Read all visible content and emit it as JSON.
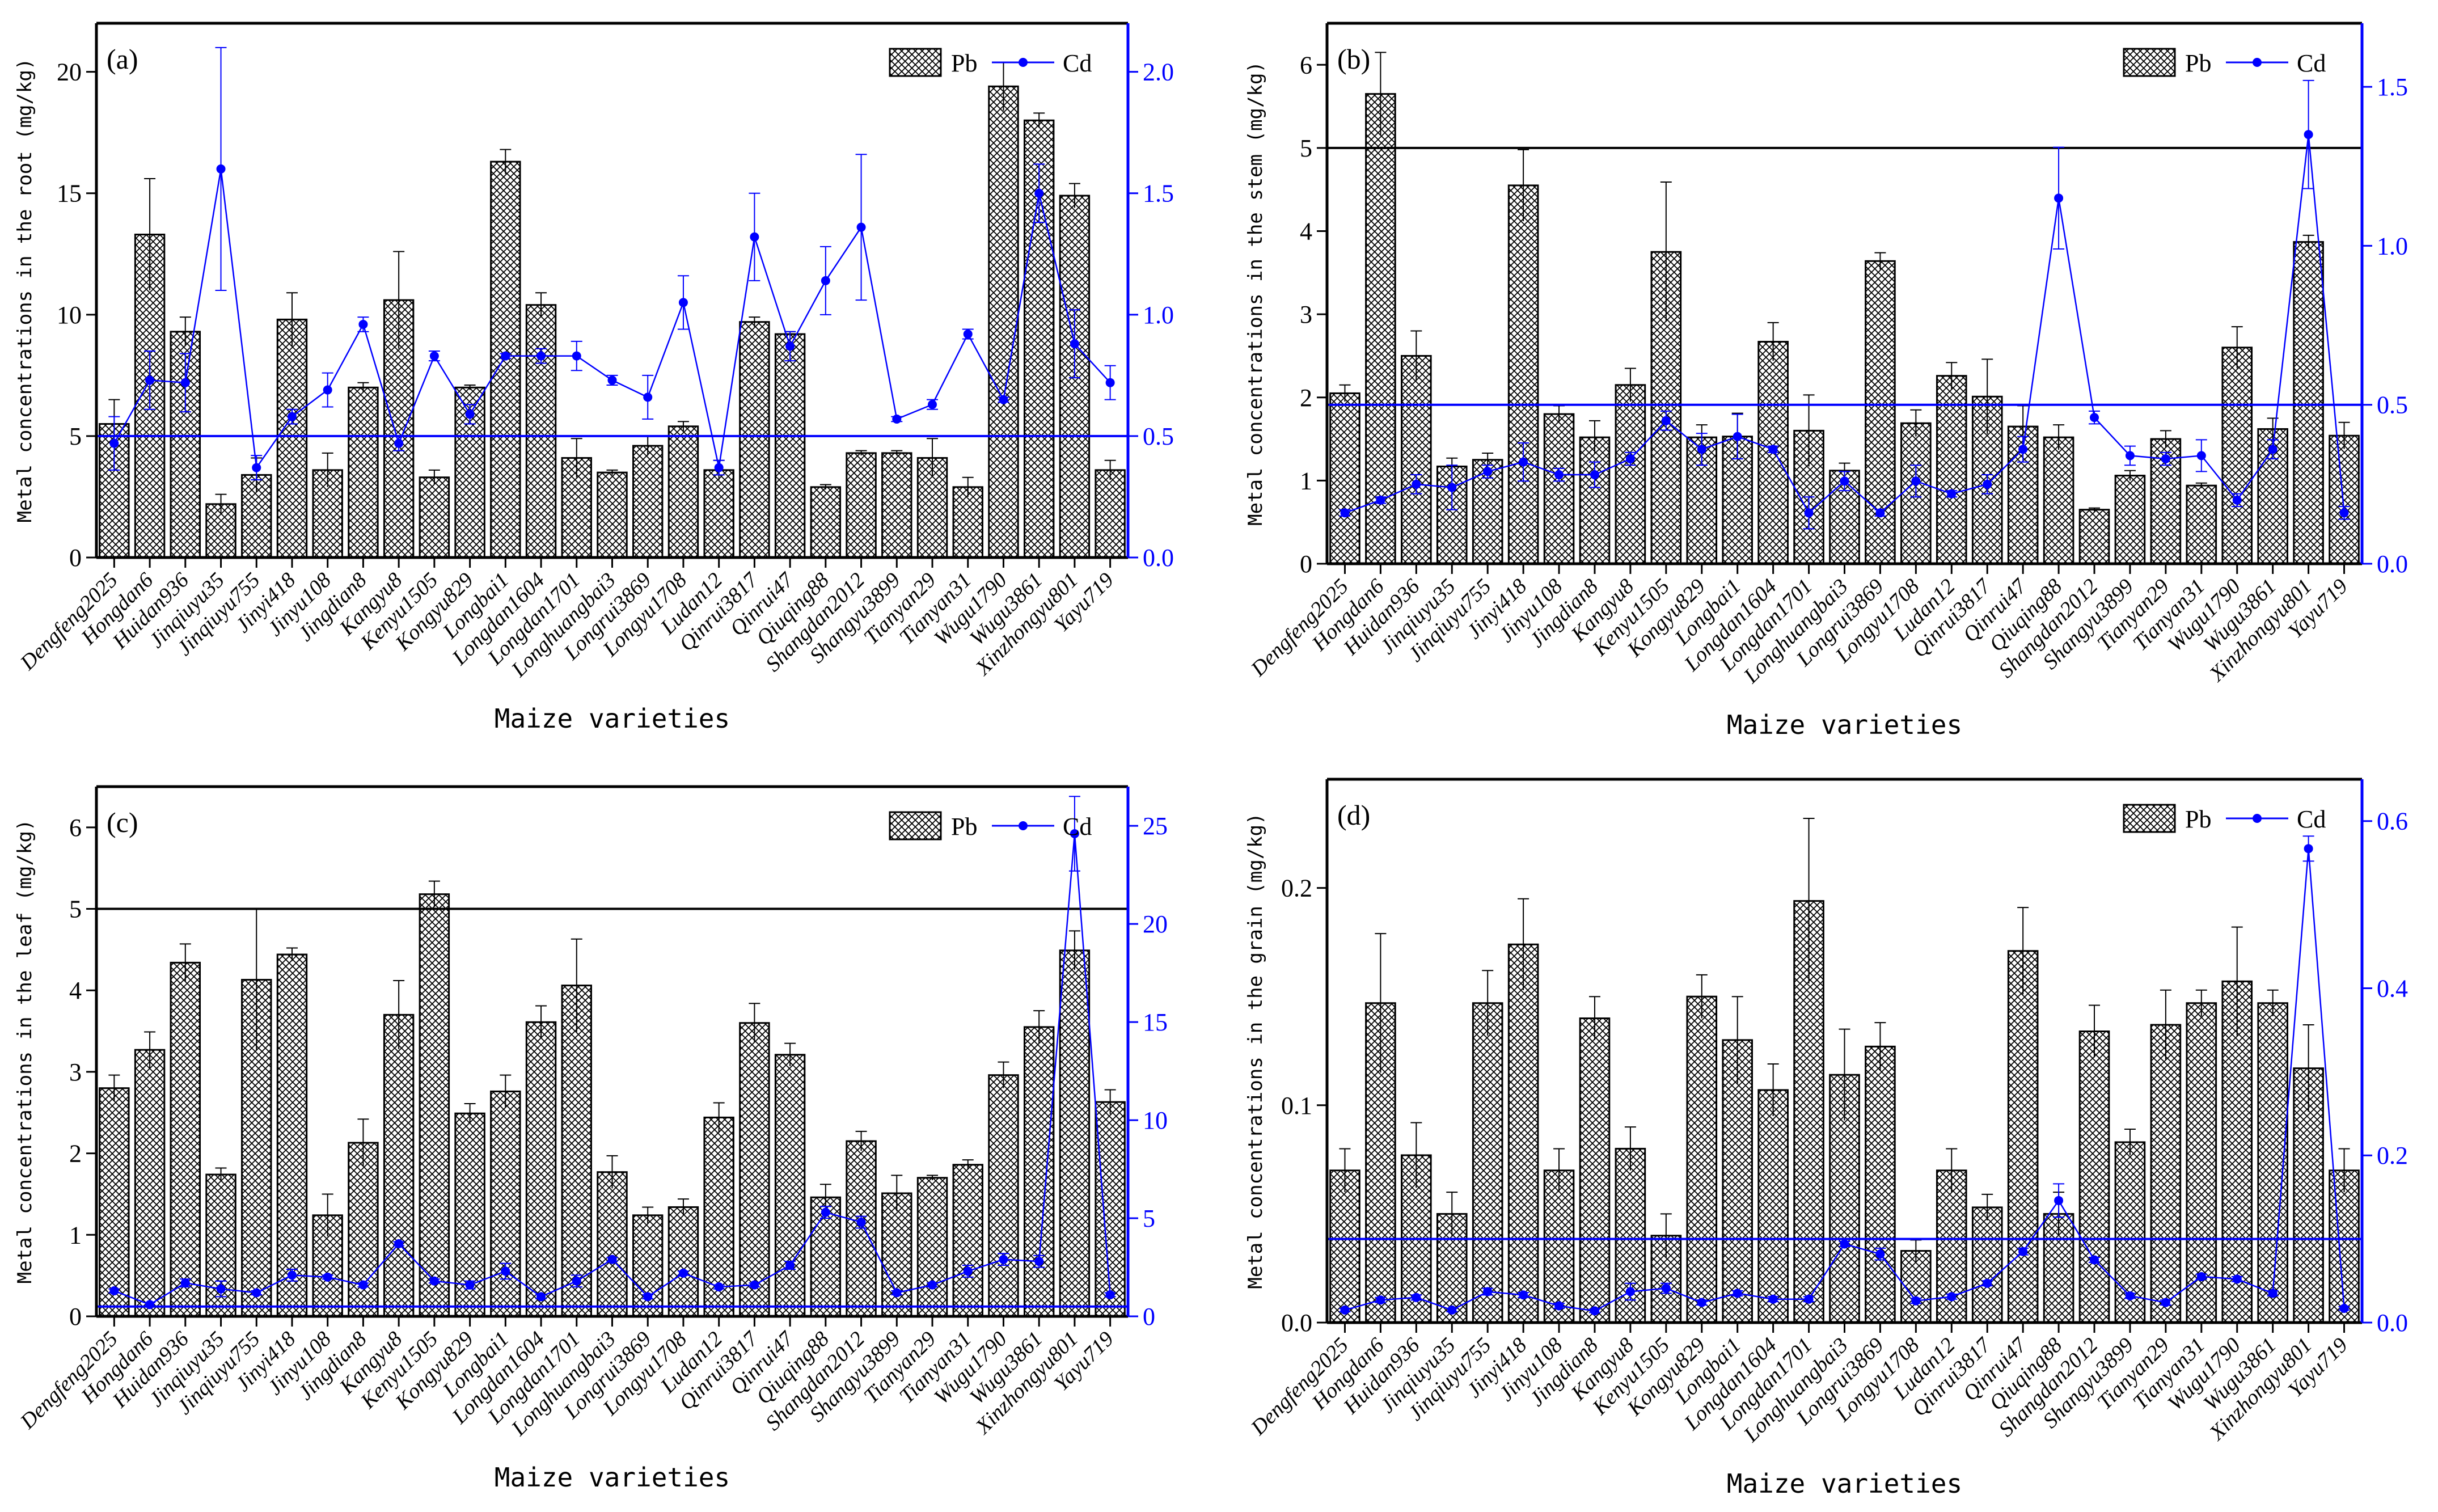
{
  "chart_data": [
    {
      "type": "bar+line",
      "panel_label": "(a)",
      "xlabel": "Maize varieties",
      "ylabel": "Metal concentrations in the root (mg/kg)",
      "categories": [
        "Dengfeng2025",
        "Hongdan6",
        "Huidan936",
        "Jinqiuyu35",
        "Jinqiuyu755",
        "Jinyi418",
        "Jinyu108",
        "Jingdian8",
        "Kangyu8",
        "Kenyu1505",
        "Kongyu829",
        "Longbai1",
        "Longdan1604",
        "Longdan1701",
        "Longhuangbai3",
        "Longrui3869",
        "Longyu1708",
        "Ludan12",
        "Qinrui3817",
        "Qinrui47",
        "Qiuqing88",
        "Shangdan2012",
        "Shangyu3899",
        "Tianyan29",
        "Tianyan31",
        "Wugu1790",
        "Wugu3861",
        "Xinzhongyu801",
        "Yayu719"
      ],
      "ylim_left": [
        0,
        22
      ],
      "ylim_right": [
        0,
        2.2
      ],
      "left_ticks": [
        "0",
        "5",
        "10",
        "15",
        "20"
      ],
      "right_ticks": [
        "0.0",
        "0.5",
        "1.0",
        "1.5",
        "2.0"
      ],
      "legend_position": "top-right",
      "series": [
        {
          "name": "Pb",
          "axis": "left",
          "kind": "bar",
          "values": [
            5.5,
            13.3,
            9.3,
            2.2,
            3.4,
            9.8,
            3.6,
            7.0,
            10.6,
            3.3,
            7.0,
            16.3,
            10.4,
            4.1,
            3.5,
            4.6,
            5.4,
            3.6,
            9.7,
            9.2,
            2.9,
            4.3,
            4.3,
            4.1,
            2.9,
            19.4,
            18.0,
            14.9,
            3.6
          ],
          "errors": [
            1.0,
            2.3,
            0.6,
            0.4,
            0.7,
            1.1,
            0.7,
            0.2,
            2.0,
            0.3,
            0.1,
            0.5,
            0.5,
            0.8,
            0.1,
            0.4,
            0.2,
            0.4,
            0.2,
            0.1,
            0.1,
            0.1,
            0.1,
            0.8,
            0.4,
            1.0,
            0.3,
            0.5,
            0.4
          ]
        },
        {
          "name": "Cd",
          "axis": "right",
          "kind": "line",
          "values": [
            0.47,
            0.73,
            0.72,
            1.6,
            0.37,
            0.58,
            0.69,
            0.96,
            0.47,
            0.83,
            0.59,
            0.83,
            0.83,
            0.83,
            0.73,
            0.66,
            1.05,
            0.37,
            1.32,
            0.87,
            1.14,
            1.36,
            0.57,
            0.63,
            0.92,
            0.65,
            1.5,
            0.88,
            0.72
          ],
          "errors": [
            0.11,
            0.12,
            0.12,
            0.5,
            0.05,
            0.03,
            0.07,
            0.03,
            0.03,
            0.02,
            0.04,
            0.01,
            0.03,
            0.06,
            0.02,
            0.09,
            0.11,
            0.03,
            0.18,
            0.06,
            0.14,
            0.3,
            0.01,
            0.02,
            0.02,
            0.01,
            0.12,
            0.14,
            0.07
          ]
        }
      ],
      "reference_lines": [
        {
          "axis": "right",
          "value": 0.5,
          "color": "#0000ff"
        }
      ]
    },
    {
      "type": "bar+line",
      "panel_label": "(b)",
      "xlabel": "Maize varieties",
      "ylabel": "Metal concentrations in the stem (mg/kg)",
      "categories": [
        "Dengfeng2025",
        "Hongdan6",
        "Huidan936",
        "Jinqiuyu35",
        "Jinqiuyu755",
        "Jinyi418",
        "Jinyu108",
        "Jingdian8",
        "Kangyu8",
        "Kenyu1505",
        "Kongyu829",
        "Longbai1",
        "Longdan1604",
        "Longdan1701",
        "Longhuangbai3",
        "Longrui3869",
        "Longyu1708",
        "Ludan12",
        "Qinrui3817",
        "Qinrui47",
        "Qiuqing88",
        "Shangdan2012",
        "Shangyu3899",
        "Tianyan29",
        "Tianyan31",
        "Wugu1790",
        "Wugu3861",
        "Xinzhongyu801",
        "Yayu719"
      ],
      "ylim_left": [
        0,
        6.5
      ],
      "ylim_right": [
        0,
        1.7
      ],
      "left_ticks": [
        "0",
        "1",
        "2",
        "3",
        "4",
        "5",
        "6"
      ],
      "right_ticks": [
        "0.0",
        "0.5",
        "1.0",
        "1.5"
      ],
      "legend_position": "top-right",
      "series": [
        {
          "name": "Pb",
          "axis": "left",
          "kind": "bar",
          "values": [
            2.05,
            5.65,
            2.5,
            1.17,
            1.25,
            4.55,
            1.8,
            1.52,
            2.15,
            3.75,
            1.52,
            1.53,
            2.67,
            1.6,
            1.12,
            3.64,
            1.69,
            2.26,
            2.01,
            1.65,
            1.52,
            0.65,
            1.06,
            1.5,
            0.94,
            2.6,
            1.62,
            3.87,
            1.54
          ],
          "errors": [
            0.1,
            0.5,
            0.3,
            0.1,
            0.08,
            0.43,
            0.1,
            0.2,
            0.2,
            0.84,
            0.15,
            0.28,
            0.23,
            0.43,
            0.09,
            0.1,
            0.16,
            0.16,
            0.45,
            0.25,
            0.15,
            0.02,
            0.06,
            0.1,
            0.03,
            0.25,
            0.13,
            0.08,
            0.16
          ]
        },
        {
          "name": "Cd",
          "axis": "right",
          "kind": "line",
          "values": [
            0.16,
            0.2,
            0.25,
            0.24,
            0.29,
            0.32,
            0.28,
            0.28,
            0.33,
            0.45,
            0.36,
            0.4,
            0.36,
            0.16,
            0.26,
            0.16,
            0.26,
            0.22,
            0.25,
            0.36,
            1.15,
            0.46,
            0.34,
            0.33,
            0.34,
            0.2,
            0.36,
            1.35,
            0.16
          ],
          "errors": [
            0.01,
            0.01,
            0.03,
            0.07,
            0.02,
            0.06,
            0.02,
            0.04,
            0.02,
            0.03,
            0.05,
            0.07,
            0.01,
            0.05,
            0.03,
            0.01,
            0.05,
            0.01,
            0.03,
            0.04,
            0.16,
            0.02,
            0.03,
            0.02,
            0.05,
            0.02,
            0.03,
            0.17,
            0.02
          ]
        }
      ],
      "reference_lines": [
        {
          "axis": "left",
          "value": 5,
          "color": "#000000"
        },
        {
          "axis": "right",
          "value": 0.5,
          "color": "#0000ff"
        }
      ]
    },
    {
      "type": "bar+line",
      "panel_label": "(c)",
      "xlabel": "Maize varieties",
      "ylabel": "Metal concentrations in the leaf (mg/kg)",
      "categories": [
        "Dengfeng2025",
        "Hongdan6",
        "Huidan936",
        "Jinqiuyu35",
        "Jinqiuyu755",
        "Jinyi418",
        "Jinyu108",
        "Jingdian8",
        "Kangyu8",
        "Kenyu1505",
        "Kongyu829",
        "Longbai1",
        "Longdan1604",
        "Longdan1701",
        "Longhuangbai3",
        "Longrui3869",
        "Longyu1708",
        "Ludan12",
        "Qinrui3817",
        "Qinrui47",
        "Qiuqing88",
        "Shangdan2012",
        "Shangyu3899",
        "Tianyan29",
        "Tianyan31",
        "Wugu1790",
        "Wugu3861",
        "Xinzhongyu801",
        "Yayu719"
      ],
      "ylim_left": [
        0,
        6.5
      ],
      "ylim_right": [
        0,
        27
      ],
      "left_ticks": [
        "0",
        "1",
        "2",
        "3",
        "4",
        "5",
        "6"
      ],
      "right_ticks": [
        "0",
        "5",
        "10",
        "15",
        "20",
        "25"
      ],
      "legend_position": "top-right",
      "series": [
        {
          "name": "Pb",
          "axis": "left",
          "kind": "bar",
          "values": [
            2.8,
            3.27,
            4.34,
            1.74,
            4.13,
            4.44,
            1.24,
            2.13,
            3.7,
            5.18,
            2.49,
            2.76,
            3.61,
            4.06,
            1.77,
            1.24,
            1.34,
            2.44,
            3.6,
            3.21,
            1.46,
            2.15,
            1.51,
            1.7,
            1.86,
            2.96,
            3.55,
            4.49,
            2.63
          ],
          "errors": [
            0.16,
            0.22,
            0.23,
            0.08,
            0.87,
            0.08,
            0.26,
            0.29,
            0.42,
            0.16,
            0.12,
            0.2,
            0.2,
            0.57,
            0.2,
            0.1,
            0.1,
            0.18,
            0.24,
            0.14,
            0.16,
            0.12,
            0.22,
            0.03,
            0.06,
            0.16,
            0.2,
            0.24,
            0.15
          ]
        },
        {
          "name": "Cd",
          "axis": "right",
          "kind": "line",
          "values": [
            1.3,
            0.6,
            1.7,
            1.4,
            1.2,
            2.1,
            2.0,
            1.6,
            3.7,
            1.8,
            1.6,
            2.3,
            1.0,
            1.8,
            2.9,
            1.0,
            2.2,
            1.5,
            1.6,
            2.6,
            5.3,
            4.8,
            1.2,
            1.6,
            2.3,
            2.9,
            2.8,
            24.6,
            1.1
          ],
          "errors": [
            0.1,
            0.1,
            0.2,
            0.4,
            0.1,
            0.3,
            0.1,
            0.1,
            0.1,
            0.1,
            0.2,
            0.4,
            0.1,
            0.3,
            0.1,
            0.1,
            0.1,
            0.1,
            0.1,
            0.2,
            0.3,
            0.3,
            0.1,
            0.1,
            0.3,
            0.3,
            0.3,
            1.9,
            0.1
          ]
        }
      ],
      "reference_lines": [
        {
          "axis": "left",
          "value": 5,
          "color": "#000000"
        },
        {
          "axis": "right",
          "value": 0.5,
          "color": "#0000ff"
        }
      ]
    },
    {
      "type": "bar+line",
      "panel_label": "(d)",
      "xlabel": "Maize varieties",
      "ylabel": "Metal concentrations in the grain (mg/kg)",
      "categories": [
        "Dengfeng2025",
        "Hongdan6",
        "Huidan936",
        "Jinqiuyu35",
        "Jinqiuyu755",
        "Jinyi418",
        "Jinyu108",
        "Jingdian8",
        "Kangyu8",
        "Kenyu1505",
        "Kongyu829",
        "Longbai1",
        "Longdan1604",
        "Longdan1701",
        "Longhuangbai3",
        "Longrui3869",
        "Longyu1708",
        "Ludan12",
        "Qinrui3817",
        "Qinrui47",
        "Qiuqing88",
        "Shangdan2012",
        "Shangyu3899",
        "Tianyan29",
        "Tianyan31",
        "Wugu1790",
        "Wugu3861",
        "Xinzhongyu801",
        "Yayu719"
      ],
      "ylim_left": [
        0,
        0.25
      ],
      "ylim_right": [
        0,
        0.65
      ],
      "left_ticks": [
        "0.0",
        "0.1",
        "0.2"
      ],
      "right_ticks": [
        "0.0",
        "0.2",
        "0.4",
        "0.6"
      ],
      "legend_position": "top-right",
      "series": [
        {
          "name": "Pb",
          "axis": "left",
          "kind": "bar",
          "values": [
            0.07,
            0.147,
            0.077,
            0.05,
            0.147,
            0.174,
            0.07,
            0.14,
            0.08,
            0.04,
            0.15,
            0.13,
            0.107,
            0.194,
            0.114,
            0.127,
            0.033,
            0.07,
            0.053,
            0.171,
            0.05,
            0.134,
            0.083,
            0.137,
            0.147,
            0.157,
            0.147,
            0.117,
            0.07
          ],
          "errors": [
            0.01,
            0.032,
            0.015,
            0.01,
            0.015,
            0.021,
            0.01,
            0.01,
            0.01,
            0.01,
            0.01,
            0.02,
            0.012,
            0.038,
            0.021,
            0.011,
            0.005,
            0.01,
            0.006,
            0.02,
            0.01,
            0.012,
            0.006,
            0.016,
            0.006,
            0.025,
            0.006,
            0.02,
            0.01
          ]
        },
        {
          "name": "Cd",
          "axis": "right",
          "kind": "line",
          "values": [
            0.015,
            0.027,
            0.03,
            0.015,
            0.037,
            0.033,
            0.02,
            0.014,
            0.037,
            0.041,
            0.024,
            0.035,
            0.028,
            0.028,
            0.094,
            0.082,
            0.026,
            0.031,
            0.047,
            0.085,
            0.146,
            0.075,
            0.032,
            0.024,
            0.055,
            0.052,
            0.035,
            0.567,
            0.017
          ],
          "errors": [
            0.002,
            0.003,
            0.003,
            0.002,
            0.004,
            0.003,
            0.003,
            0.002,
            0.01,
            0.006,
            0.003,
            0.003,
            0.003,
            0.003,
            0.003,
            0.007,
            0.003,
            0.003,
            0.003,
            0.004,
            0.02,
            0.003,
            0.003,
            0.003,
            0.003,
            0.003,
            0.003,
            0.015,
            0.002
          ]
        }
      ],
      "reference_lines": [
        {
          "axis": "right",
          "value": 0.1,
          "color": "#0000ff"
        }
      ]
    }
  ],
  "colors": {
    "pb": "#000000",
    "cd": "#0000ff",
    "right_axis": "#0000ff"
  }
}
